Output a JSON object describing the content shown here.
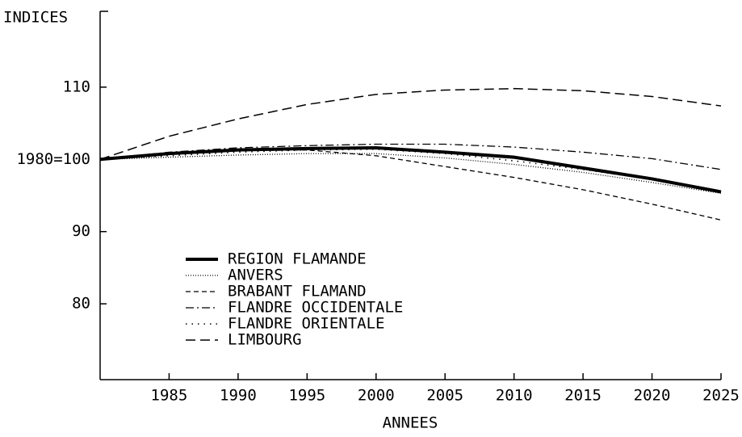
{
  "chart_data": {
    "type": "line",
    "ylabel": "INDICES",
    "xlabel": "ANNEES",
    "x": [
      1980,
      1985,
      1990,
      1995,
      2000,
      2005,
      2010,
      2015,
      2020,
      2025
    ],
    "xlim": [
      1980,
      2025
    ],
    "xticks": [
      1985,
      1990,
      1995,
      2000,
      2005,
      2010,
      2015,
      2020,
      2025
    ],
    "ylim": [
      69.5,
      120.5
    ],
    "yticks": [
      80,
      90,
      {
        "value": 100,
        "label": "1980=100"
      },
      110
    ],
    "grid": false,
    "legend": "lower left",
    "series": [
      {
        "name": "REGION FLAMANDE",
        "color": "#000000",
        "style": "solid",
        "values": [
          100,
          100.8,
          101.3,
          101.5,
          101.6,
          101,
          100.3,
          98.8,
          97.3,
          95.5
        ]
      },
      {
        "name": "ANVERS",
        "color": "#000000",
        "style": "dotted",
        "values": [
          100,
          100.3,
          100.6,
          100.8,
          100.8,
          100.2,
          99.3,
          98.2,
          96.8,
          95.3
        ]
      },
      {
        "name": "BRABANT FLAMAND",
        "color": "#000000",
        "style": "dashed",
        "values": [
          100,
          100.8,
          101.2,
          101.3,
          100.5,
          99,
          97.5,
          95.8,
          93.8,
          91.6
        ]
      },
      {
        "name": "FLANDRE OCCIDENTALE",
        "color": "#000000",
        "style": "dashdot",
        "values": [
          100,
          101,
          101.6,
          101.9,
          102.1,
          102.1,
          101.7,
          101,
          100.1,
          98.6
        ]
      },
      {
        "name": "FLANDRE ORIENTALE",
        "color": "#000000",
        "style": "sparse-dotted",
        "values": [
          100,
          100.5,
          101,
          101.3,
          101.4,
          100.8,
          99.8,
          98.6,
          97.2,
          95.6
        ]
      },
      {
        "name": "LIMBOURG",
        "color": "#000000",
        "style": "long-dashed",
        "values": [
          100,
          103.2,
          105.6,
          107.6,
          109,
          109.6,
          109.8,
          109.5,
          108.7,
          107.4
        ]
      }
    ]
  }
}
